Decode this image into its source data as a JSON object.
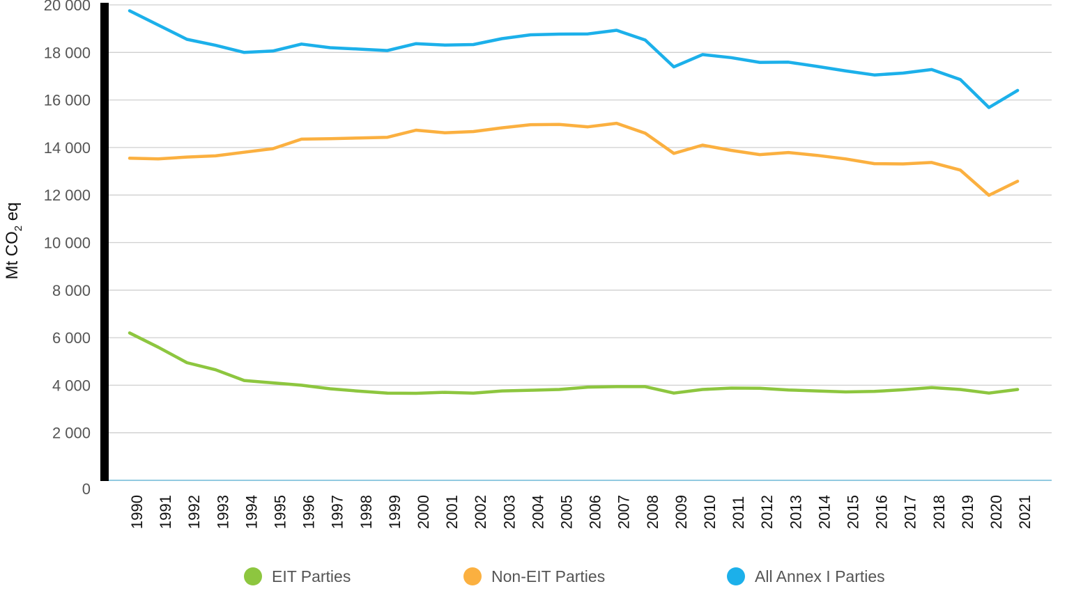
{
  "chart_data": {
    "type": "line",
    "title": "",
    "xlabel": "",
    "ylabel": {
      "main": "Mt CO",
      "subscript": "2",
      "suffix": " eq"
    },
    "ylim": [
      0,
      20000
    ],
    "grid": "horizontal",
    "legend_position": "bottom",
    "y_ticks": [
      {
        "value": 0,
        "label": "0"
      },
      {
        "value": 2000,
        "label": "2 000"
      },
      {
        "value": 4000,
        "label": "4 000"
      },
      {
        "value": 6000,
        "label": "6 000"
      },
      {
        "value": 8000,
        "label": "8 000"
      },
      {
        "value": 10000,
        "label": "10 000"
      },
      {
        "value": 12000,
        "label": "12 000"
      },
      {
        "value": 14000,
        "label": "14 000"
      },
      {
        "value": 16000,
        "label": "16 000"
      },
      {
        "value": 18000,
        "label": "18 000"
      },
      {
        "value": 20000,
        "label": "20 000"
      }
    ],
    "categories": [
      "1990",
      "1991",
      "1992",
      "1993",
      "1994",
      "1995",
      "1996",
      "1997",
      "1998",
      "1999",
      "2000",
      "2001",
      "2002",
      "2003",
      "2004",
      "2005",
      "2006",
      "2007",
      "2008",
      "2009",
      "2010",
      "2011",
      "2012",
      "2013",
      "2014",
      "2015",
      "2016",
      "2017",
      "2018",
      "2019",
      "2020",
      "2021"
    ],
    "series": [
      {
        "name": "EIT Parties",
        "color": "#8dc63f",
        "values": [
          6200,
          5600,
          4950,
          4650,
          4200,
          4100,
          4000,
          3850,
          3750,
          3670,
          3660,
          3700,
          3670,
          3760,
          3790,
          3820,
          3920,
          3940,
          3940,
          3670,
          3820,
          3880,
          3870,
          3800,
          3760,
          3720,
          3740,
          3810,
          3900,
          3820,
          3670,
          3820
        ]
      },
      {
        "name": "Non-EIT Parties",
        "color": "#fbb040",
        "values": [
          13550,
          13520,
          13600,
          13650,
          13800,
          13950,
          14350,
          14370,
          14400,
          14430,
          14730,
          14620,
          14670,
          14830,
          14960,
          14970,
          14870,
          15020,
          14600,
          13750,
          14100,
          13880,
          13700,
          13790,
          13670,
          13520,
          13320,
          13310,
          13370,
          13050,
          11990,
          12580
        ]
      },
      {
        "name": "All Annex I Parties",
        "color": "#1cb0ea",
        "values": [
          19750,
          19150,
          18550,
          18300,
          18000,
          18060,
          18350,
          18200,
          18140,
          18080,
          18370,
          18310,
          18330,
          18580,
          18740,
          18770,
          18780,
          18930,
          18520,
          17390,
          17910,
          17780,
          17580,
          17590,
          17410,
          17220,
          17050,
          17130,
          17280,
          16860,
          15680,
          16400
        ]
      }
    ]
  }
}
